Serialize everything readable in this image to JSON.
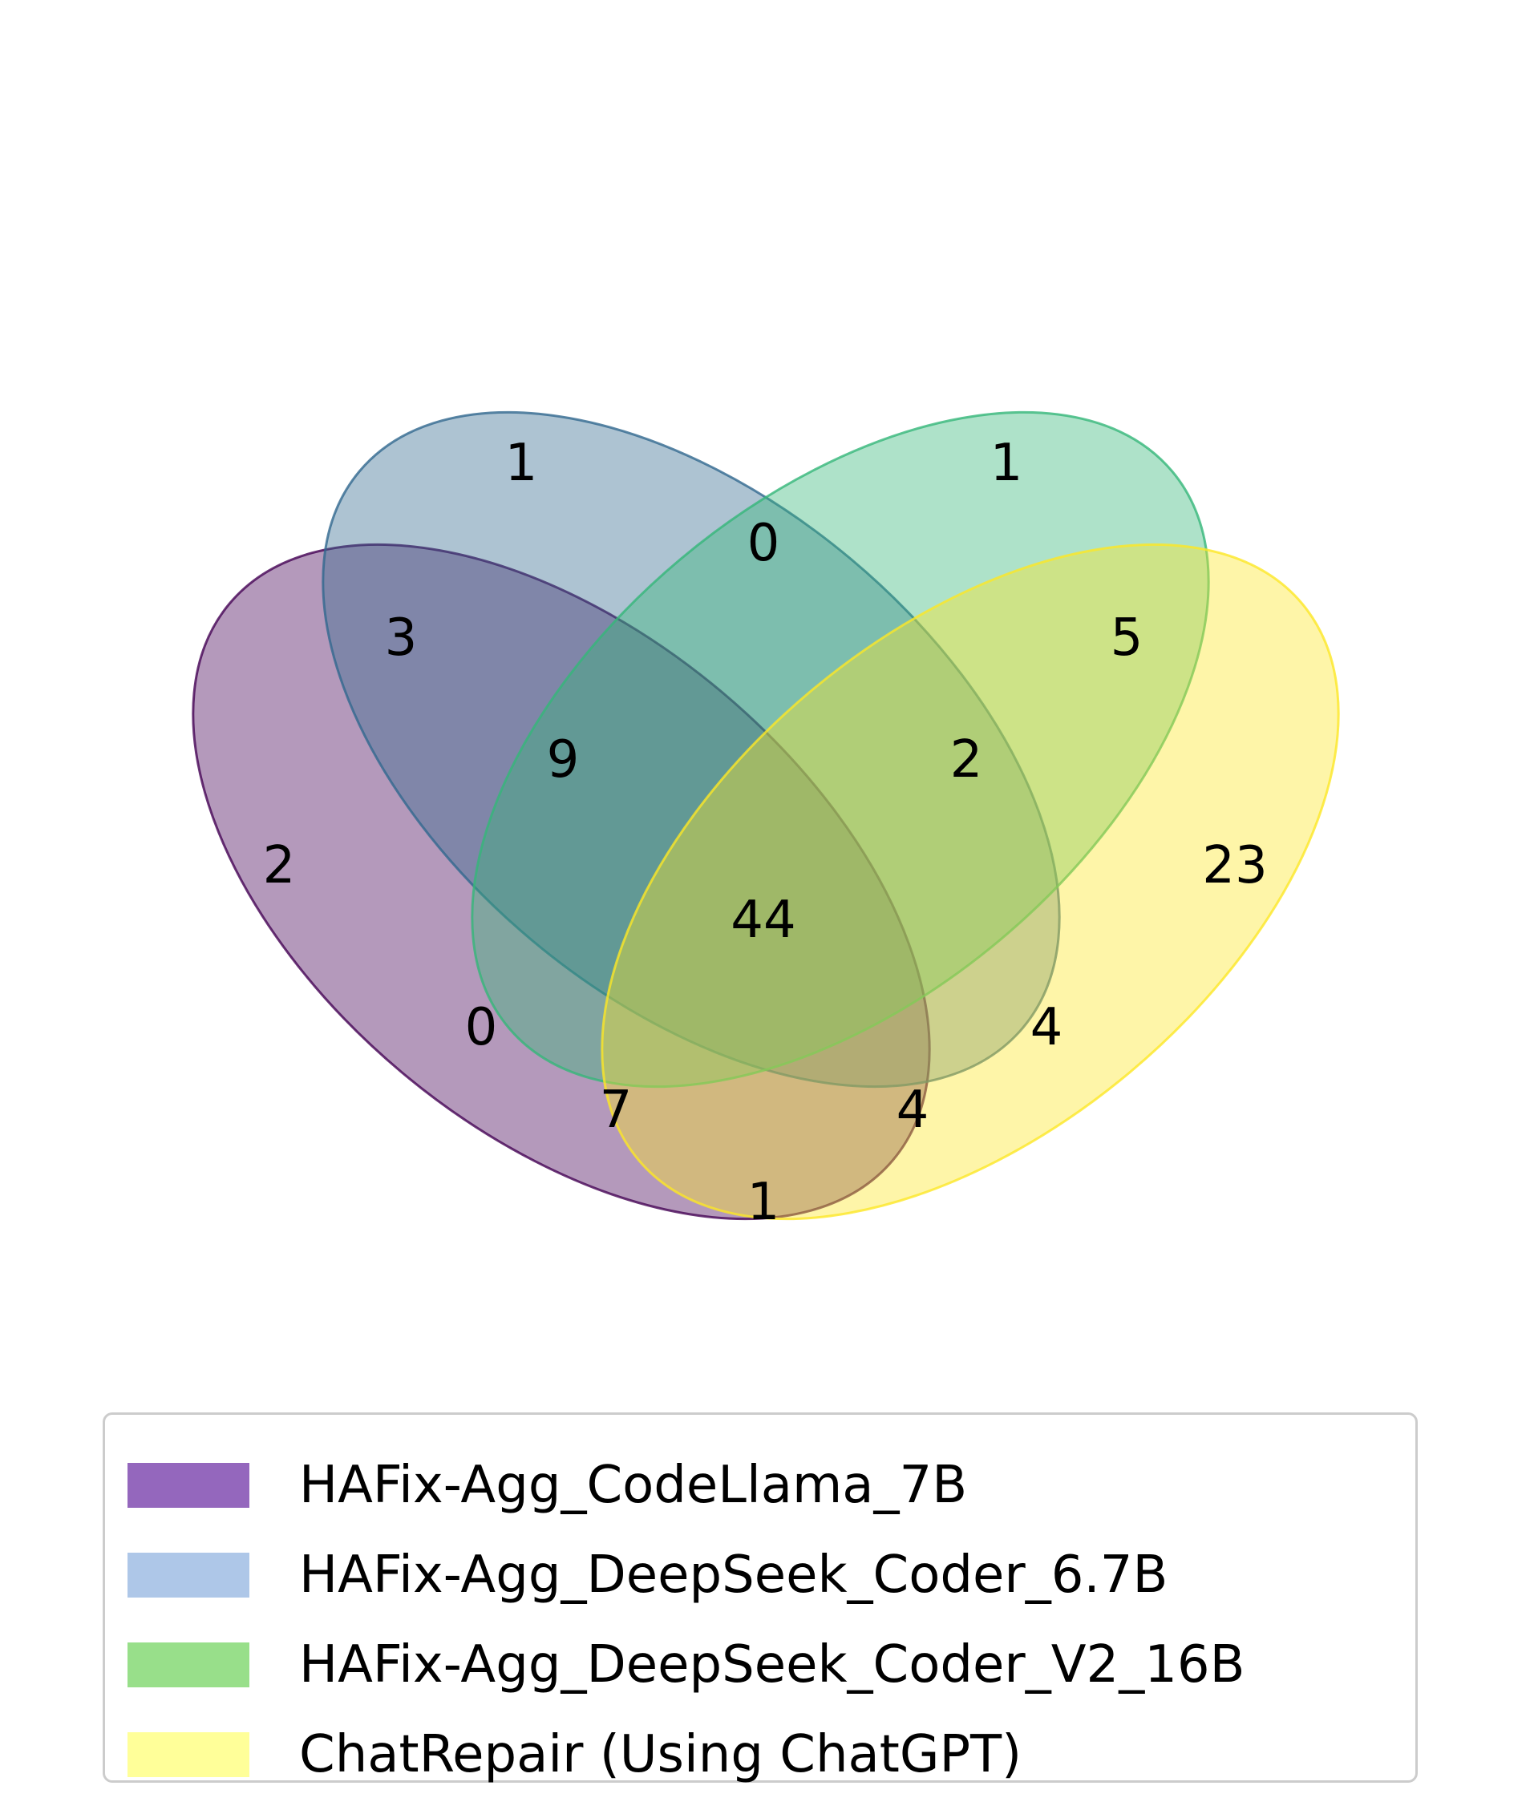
{
  "chart_data": {
    "type": "venn",
    "sets": [
      {
        "name": "HAFix-Agg_CodeLlama_7B",
        "fill": "#440154",
        "edge": "#440154",
        "legend_color": "#9467bd"
      },
      {
        "name": "HAFix-Agg_DeepSeek_Coder_6.7B",
        "fill": "#31688e",
        "edge": "#31688e",
        "legend_color": "#aec7e8"
      },
      {
        "name": "HAFix-Agg_DeepSeek_Coder_V2_16B",
        "fill": "#35b779",
        "edge": "#35b779",
        "legend_color": "#98df8a"
      },
      {
        "name": "ChatRepair (Using ChatGPT)",
        "fill": "#fde725",
        "edge": "#fde725",
        "legend_color": "#ffff99"
      }
    ],
    "regions": [
      {
        "sets": [
          "HAFix-Agg_CodeLlama_7B"
        ],
        "value": "2"
      },
      {
        "sets": [
          "HAFix-Agg_DeepSeek_Coder_6.7B"
        ],
        "value": "1"
      },
      {
        "sets": [
          "HAFix-Agg_DeepSeek_Coder_V2_16B"
        ],
        "value": "1"
      },
      {
        "sets": [
          "ChatRepair (Using ChatGPT)"
        ],
        "value": "23"
      },
      {
        "sets": [
          "HAFix-Agg_DeepSeek_Coder_6.7B",
          "HAFix-Agg_DeepSeek_Coder_V2_16B"
        ],
        "value": "0"
      },
      {
        "sets": [
          "HAFix-Agg_CodeLlama_7B",
          "HAFix-Agg_DeepSeek_Coder_6.7B"
        ],
        "value": "3"
      },
      {
        "sets": [
          "HAFix-Agg_DeepSeek_Coder_V2_16B",
          "ChatRepair (Using ChatGPT)"
        ],
        "value": "5"
      },
      {
        "sets": [
          "HAFix-Agg_CodeLlama_7B",
          "HAFix-Agg_DeepSeek_Coder_6.7B",
          "HAFix-Agg_DeepSeek_Coder_V2_16B"
        ],
        "value": "9"
      },
      {
        "sets": [
          "HAFix-Agg_DeepSeek_Coder_6.7B",
          "HAFix-Agg_DeepSeek_Coder_V2_16B",
          "ChatRepair (Using ChatGPT)"
        ],
        "value": "2"
      },
      {
        "sets": [
          "HAFix-Agg_CodeLlama_7B",
          "HAFix-Agg_DeepSeek_Coder_6.7B",
          "HAFix-Agg_DeepSeek_Coder_V2_16B",
          "ChatRepair (Using ChatGPT)"
        ],
        "value": "44"
      },
      {
        "sets": [
          "HAFix-Agg_CodeLlama_7B",
          "HAFix-Agg_DeepSeek_Coder_V2_16B"
        ],
        "value": "0"
      },
      {
        "sets": [
          "HAFix-Agg_DeepSeek_Coder_6.7B",
          "ChatRepair (Using ChatGPT)"
        ],
        "value": "4"
      },
      {
        "sets": [
          "HAFix-Agg_CodeLlama_7B",
          "HAFix-Agg_DeepSeek_Coder_V2_16B",
          "ChatRepair (Using ChatGPT)"
        ],
        "value": "7"
      },
      {
        "sets": [
          "HAFix-Agg_CodeLlama_7B",
          "HAFix-Agg_DeepSeek_Coder_6.7B",
          "ChatRepair (Using ChatGPT)"
        ],
        "value": "4"
      },
      {
        "sets": [
          "HAFix-Agg_CodeLlama_7B",
          "ChatRepair (Using ChatGPT)"
        ],
        "value": "1"
      }
    ],
    "legend_placement": "bottom"
  }
}
